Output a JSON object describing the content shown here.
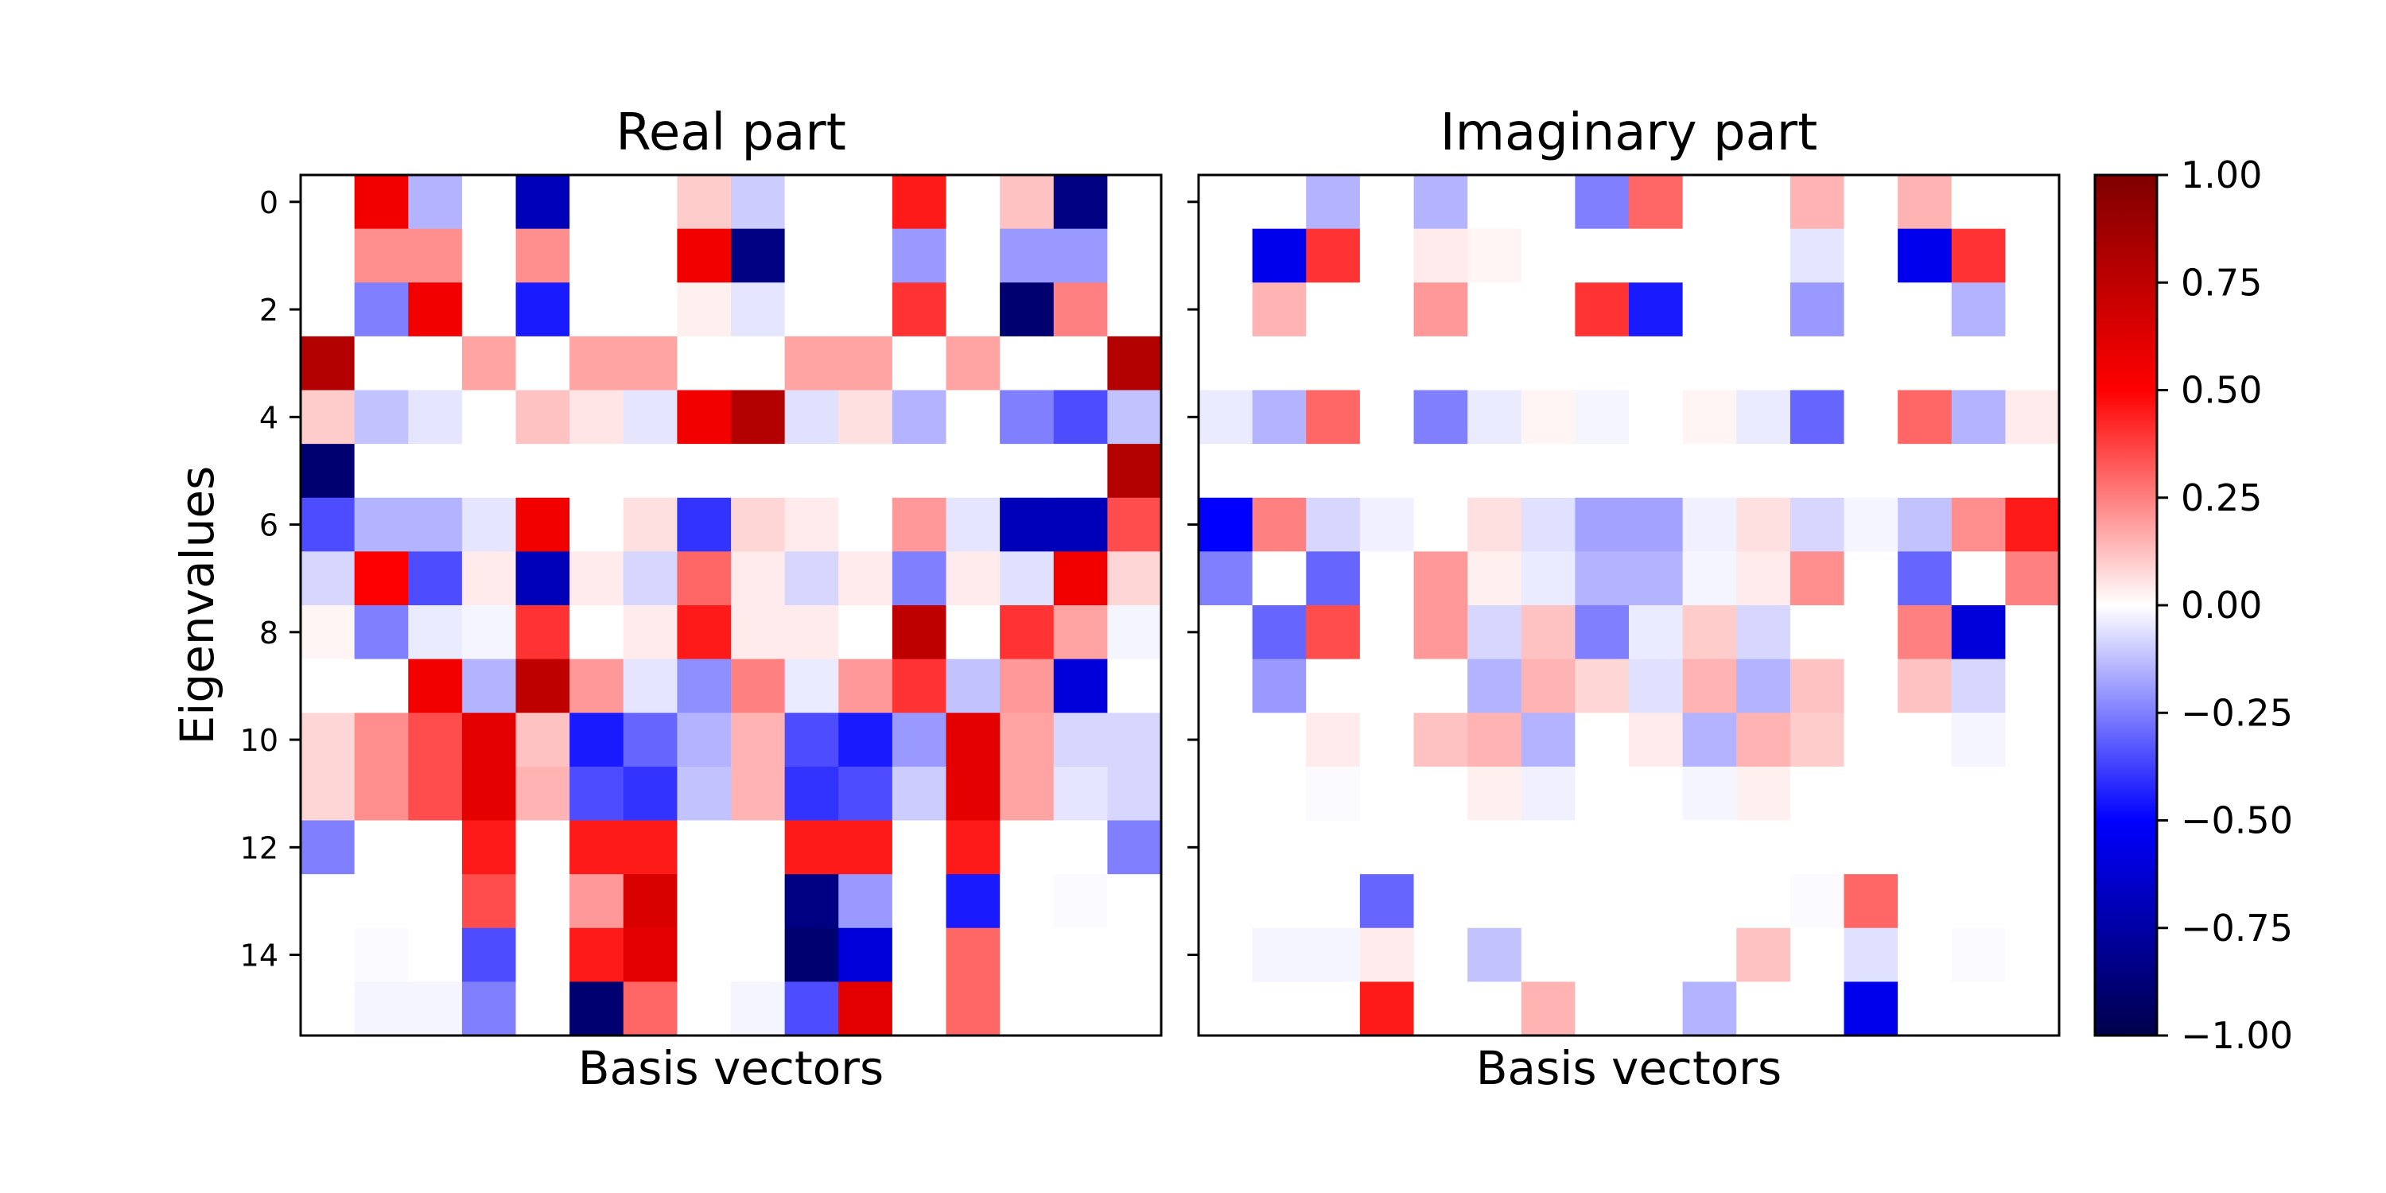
{
  "chart_data": [
    {
      "type": "heatmap",
      "title": "Real part",
      "xlabel": "Basis vectors",
      "ylabel": "Eigenvalues",
      "y_ticks": [
        0,
        2,
        4,
        6,
        8,
        10,
        12,
        14
      ],
      "x_ticks": [],
      "colormap": "seismic",
      "vmin": -1.0,
      "vmax": 1.0,
      "values": [
        [
          0.0,
          0.55,
          -0.15,
          0.0,
          -0.7,
          0.0,
          0.0,
          0.1,
          -0.1,
          0.0,
          0.0,
          0.45,
          0.0,
          0.12,
          -0.85,
          0.0
        ],
        [
          0.0,
          0.22,
          0.22,
          0.0,
          0.22,
          0.0,
          0.0,
          0.55,
          -0.85,
          0.0,
          0.0,
          -0.2,
          0.0,
          -0.2,
          -0.2,
          0.0
        ],
        [
          0.0,
          -0.25,
          0.55,
          0.0,
          -0.45,
          0.0,
          0.0,
          0.03,
          -0.05,
          0.0,
          0.0,
          0.4,
          0.0,
          -0.9,
          0.25,
          0.0
        ],
        [
          0.8,
          0.0,
          0.0,
          0.18,
          0.0,
          0.18,
          0.18,
          0.0,
          0.0,
          0.18,
          0.18,
          0.0,
          0.18,
          0.0,
          0.0,
          0.8
        ],
        [
          0.1,
          -0.12,
          -0.05,
          0.0,
          0.12,
          0.05,
          -0.05,
          0.55,
          0.8,
          -0.06,
          0.06,
          -0.15,
          0.0,
          -0.25,
          -0.35,
          -0.12
        ],
        [
          -0.9,
          0.0,
          0.0,
          0.0,
          0.0,
          0.0,
          0.0,
          0.0,
          0.0,
          0.0,
          0.0,
          0.0,
          0.0,
          0.0,
          0.0,
          0.8
        ],
        [
          -0.35,
          -0.15,
          -0.15,
          -0.05,
          0.55,
          0.0,
          0.06,
          -0.4,
          0.08,
          0.04,
          0.0,
          0.2,
          -0.05,
          -0.7,
          -0.7,
          0.35
        ],
        [
          -0.08,
          0.5,
          -0.35,
          0.04,
          -0.7,
          0.04,
          -0.08,
          0.3,
          0.04,
          -0.08,
          0.04,
          -0.25,
          0.04,
          -0.06,
          0.55,
          0.08
        ],
        [
          0.02,
          -0.25,
          -0.04,
          -0.02,
          0.4,
          0.0,
          0.04,
          0.45,
          0.04,
          0.04,
          0.0,
          0.75,
          0.0,
          0.4,
          0.18,
          -0.02
        ],
        [
          0.0,
          0.0,
          0.55,
          -0.15,
          0.75,
          0.2,
          -0.05,
          -0.22,
          0.25,
          -0.04,
          0.2,
          0.4,
          -0.12,
          0.2,
          -0.6,
          0.0
        ],
        [
          0.08,
          0.22,
          0.35,
          0.6,
          0.12,
          -0.45,
          -0.3,
          -0.15,
          0.15,
          -0.35,
          -0.45,
          -0.2,
          0.6,
          0.18,
          -0.08,
          -0.08
        ],
        [
          0.08,
          0.22,
          0.35,
          0.6,
          0.15,
          -0.35,
          -0.4,
          -0.12,
          0.15,
          -0.4,
          -0.35,
          -0.1,
          0.6,
          0.18,
          -0.05,
          -0.08
        ],
        [
          -0.25,
          0.0,
          0.0,
          0.45,
          0.0,
          0.45,
          0.45,
          0.0,
          0.0,
          0.45,
          0.45,
          0.0,
          0.45,
          0.0,
          0.0,
          -0.25
        ],
        [
          0.0,
          0.0,
          0.0,
          0.35,
          0.0,
          0.2,
          0.65,
          0.0,
          0.0,
          -0.85,
          -0.2,
          0.0,
          -0.45,
          0.0,
          -0.01,
          0.0
        ],
        [
          0.0,
          -0.01,
          0.0,
          -0.35,
          0.0,
          0.45,
          0.6,
          0.0,
          0.0,
          -0.9,
          -0.6,
          0.0,
          0.3,
          0.0,
          0.0,
          0.0
        ],
        [
          0.0,
          -0.02,
          -0.02,
          -0.25,
          0.0,
          -0.9,
          0.3,
          0.0,
          -0.02,
          -0.35,
          0.6,
          0.0,
          0.3,
          0.0,
          0.0,
          0.0
        ]
      ]
    },
    {
      "type": "heatmap",
      "title": "Imaginary part",
      "xlabel": "Basis vectors",
      "ylabel": "",
      "y_ticks": [
        0,
        2,
        4,
        6,
        8,
        10,
        12,
        14
      ],
      "x_ticks": [],
      "colormap": "seismic",
      "vmin": -1.0,
      "vmax": 1.0,
      "values": [
        [
          0.0,
          0.0,
          -0.15,
          0.0,
          -0.15,
          0.0,
          0.0,
          -0.25,
          0.3,
          0.0,
          0.0,
          0.15,
          0.0,
          0.15,
          0.0,
          0.0
        ],
        [
          0.0,
          -0.55,
          0.4,
          0.0,
          0.04,
          0.02,
          0.0,
          0.0,
          0.0,
          0.0,
          0.0,
          -0.05,
          0.0,
          -0.55,
          0.4,
          0.0
        ],
        [
          0.0,
          0.15,
          0.0,
          0.0,
          0.2,
          0.0,
          0.0,
          0.4,
          -0.45,
          0.0,
          0.0,
          -0.2,
          0.0,
          0.0,
          -0.15,
          0.0
        ],
        [
          0.0,
          0.0,
          0.0,
          0.0,
          0.0,
          0.0,
          0.0,
          0.0,
          0.0,
          0.0,
          0.0,
          0.0,
          0.0,
          0.0,
          0.0,
          0.0
        ],
        [
          -0.04,
          -0.15,
          0.3,
          0.0,
          -0.25,
          -0.04,
          0.02,
          -0.02,
          0.0,
          0.02,
          -0.04,
          -0.3,
          0.0,
          0.3,
          -0.15,
          0.04
        ],
        [
          0.0,
          0.0,
          0.0,
          0.0,
          0.0,
          0.0,
          0.0,
          0.0,
          0.0,
          0.0,
          0.0,
          0.0,
          0.0,
          0.0,
          0.0,
          0.0
        ],
        [
          -0.5,
          0.25,
          -0.08,
          -0.03,
          0.0,
          0.06,
          -0.06,
          -0.18,
          -0.18,
          -0.03,
          0.06,
          -0.08,
          -0.02,
          -0.12,
          0.22,
          0.45
        ],
        [
          -0.25,
          0.0,
          -0.3,
          0.0,
          0.2,
          0.03,
          -0.04,
          -0.15,
          -0.15,
          -0.02,
          0.04,
          0.22,
          0.0,
          -0.3,
          0.0,
          0.25
        ],
        [
          0.0,
          -0.3,
          0.35,
          0.0,
          0.2,
          -0.08,
          0.12,
          -0.25,
          -0.04,
          0.1,
          -0.08,
          0.0,
          0.0,
          0.25,
          -0.6,
          0.0
        ],
        [
          0.0,
          -0.2,
          0.0,
          0.0,
          0.0,
          -0.15,
          0.15,
          0.08,
          -0.06,
          0.15,
          -0.15,
          0.12,
          0.0,
          0.12,
          -0.08,
          0.0
        ],
        [
          0.0,
          0.0,
          0.04,
          0.0,
          0.12,
          0.15,
          -0.15,
          0.0,
          0.04,
          -0.15,
          0.15,
          0.1,
          0.0,
          0.0,
          -0.02,
          0.0
        ],
        [
          0.0,
          0.0,
          -0.01,
          0.0,
          0.0,
          0.03,
          -0.03,
          0.0,
          0.0,
          -0.02,
          0.03,
          0.0,
          0.0,
          0.0,
          0.0,
          0.0
        ],
        [
          0.0,
          0.0,
          0.0,
          0.0,
          0.0,
          0.0,
          0.0,
          0.0,
          0.0,
          0.0,
          0.0,
          0.0,
          0.0,
          0.0,
          0.0,
          0.0
        ],
        [
          0.0,
          0.0,
          0.0,
          -0.3,
          0.0,
          0.0,
          0.0,
          0.0,
          0.0,
          0.0,
          0.0,
          -0.01,
          0.3,
          0.0,
          0.0,
          0.0
        ],
        [
          0.0,
          -0.02,
          -0.02,
          0.04,
          0.0,
          -0.12,
          0.0,
          0.0,
          0.0,
          0.0,
          0.12,
          0.0,
          -0.06,
          0.0,
          -0.01,
          0.0
        ],
        [
          0.0,
          0.0,
          0.0,
          0.45,
          0.0,
          0.0,
          0.15,
          0.0,
          0.0,
          -0.15,
          0.0,
          0.0,
          -0.55,
          0.0,
          0.0,
          0.0
        ]
      ]
    }
  ],
  "colorbar": {
    "ticks": [
      "1.00",
      "0.75",
      "0.50",
      "0.25",
      "0.00",
      "−0.25",
      "−0.50",
      "−0.75",
      "−1.00"
    ],
    "tick_values": [
      1.0,
      0.75,
      0.5,
      0.25,
      0.0,
      -0.25,
      -0.5,
      -0.75,
      -1.0
    ]
  },
  "colors": {
    "background": "#ffffff",
    "axes": "#000000"
  }
}
